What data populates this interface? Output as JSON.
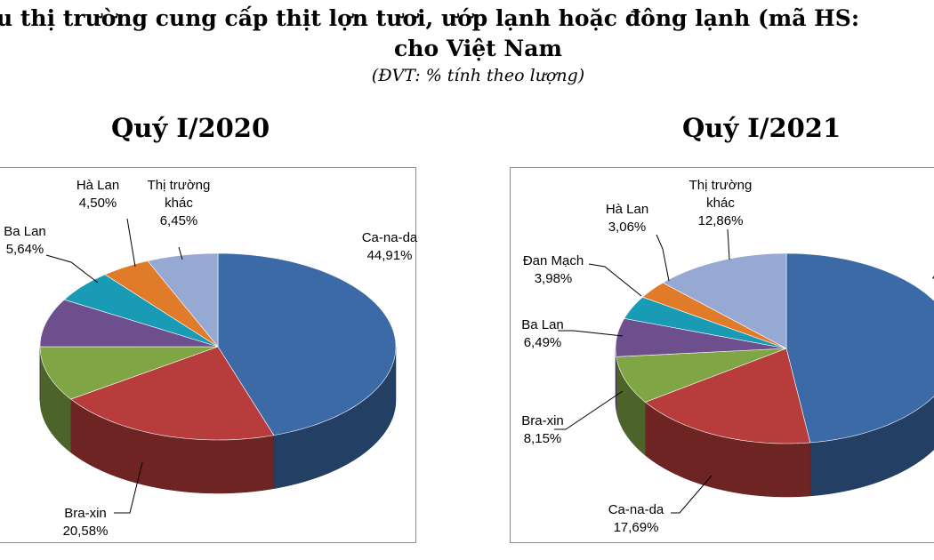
{
  "header": {
    "title_line1": "u thị trường cung cấp thịt lợn tươi, ướp lạnh hoặc đông lạnh (mã HS:",
    "title_line2": "cho Việt Nam",
    "unit": "(ĐVT: % tính theo lượng)"
  },
  "chart_data": [
    {
      "type": "pie",
      "title": "Quý I/2020",
      "slices": [
        {
          "name": "Ca-na-da",
          "value": 44.91,
          "label": "44,91%",
          "color": "#3b6aa6"
        },
        {
          "name": "Bra-xin",
          "value": 20.58,
          "label": "20,58%",
          "color": "#b83c3b"
        },
        {
          "name": "",
          "value": 9.5,
          "label": "",
          "color": "#7fa544"
        },
        {
          "name": "",
          "value": 8.42,
          "label": "",
          "color": "#6d4f8d"
        },
        {
          "name": "Ba Lan",
          "value": 5.64,
          "label": "5,64%",
          "color": "#199ab5"
        },
        {
          "name": "Hà Lan",
          "value": 4.5,
          "label": "4,50%",
          "color": "#e07b2a"
        },
        {
          "name": "Thị trường khác",
          "value": 6.45,
          "label": "6,45%",
          "color": "#95a9d3"
        }
      ]
    },
    {
      "type": "pie",
      "title": "Quý I/2021",
      "slices": [
        {
          "name": "",
          "value": 47.77,
          "label": "4",
          "color": "#3b6aa6"
        },
        {
          "name": "Ca-na-da",
          "value": 17.69,
          "label": "17,69%",
          "color": "#b83c3b"
        },
        {
          "name": "Bra-xin",
          "value": 8.15,
          "label": "8,15%",
          "color": "#7fa544"
        },
        {
          "name": "Ba Lan",
          "value": 6.49,
          "label": "6,49%",
          "color": "#6d4f8d"
        },
        {
          "name": "Đan Mạch",
          "value": 3.98,
          "label": "3,98%",
          "color": "#199ab5"
        },
        {
          "name": "Hà Lan",
          "value": 3.06,
          "label": "3,06%",
          "color": "#e07b2a"
        },
        {
          "name": "Thị trường khác",
          "value": 12.86,
          "label": "12,86%",
          "color": "#95a9d3"
        }
      ]
    }
  ]
}
